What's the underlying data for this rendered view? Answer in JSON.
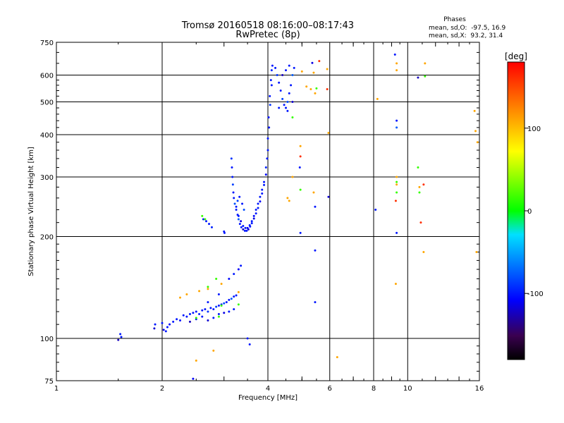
{
  "chart_data": {
    "type": "scatter",
    "title": "Tromsø 20160518 08:16:00–08:17:43",
    "subtitle": "RwPretec (8p)",
    "xlabel": "Frequency [MHz]",
    "ylabel": "Stationary phase Virtual Height [km]",
    "x_scale": "log",
    "y_scale": "log",
    "xlim": [
      1,
      16
    ],
    "ylim": [
      75,
      750
    ],
    "x_ticks": [
      1,
      2,
      4,
      6,
      8,
      10,
      16
    ],
    "y_ticks": [
      75,
      100,
      200,
      300,
      400,
      500,
      600,
      750
    ],
    "grid": true,
    "phases_box": {
      "heading": "Phases",
      "line_o": "mean, sd,O:  -97.5, 16.9",
      "line_x": "mean, sd,X:  93.2, 31.4"
    },
    "colorbar": {
      "label": "[deg]",
      "range": [
        -180,
        180
      ],
      "ticks": [
        100,
        0,
        -100
      ]
    },
    "series": [
      {
        "points": [
          [
            1.5,
            99
          ],
          [
            1.52,
            103
          ],
          [
            1.53,
            101
          ],
          [
            1.9,
            107
          ],
          [
            1.91,
            110
          ],
          [
            2.0,
            111
          ],
          [
            2.02,
            106
          ],
          [
            2.05,
            105
          ],
          [
            2.07,
            108
          ],
          [
            2.1,
            110
          ],
          [
            2.15,
            112
          ],
          [
            2.2,
            114
          ],
          [
            2.25,
            113
          ],
          [
            2.3,
            117
          ],
          [
            2.35,
            116
          ],
          [
            2.4,
            118
          ],
          [
            2.45,
            119
          ],
          [
            2.5,
            120
          ],
          [
            2.55,
            118
          ],
          [
            2.6,
            121
          ],
          [
            2.65,
            122
          ],
          [
            2.7,
            120
          ],
          [
            2.75,
            123
          ],
          [
            2.8,
            122
          ],
          [
            2.85,
            124
          ],
          [
            2.9,
            125
          ],
          [
            2.95,
            126
          ],
          [
            3.0,
            127
          ],
          [
            3.05,
            128
          ],
          [
            3.1,
            130
          ],
          [
            3.15,
            131
          ],
          [
            3.2,
            133
          ],
          [
            3.25,
            134
          ],
          [
            2.4,
            112
          ],
          [
            2.5,
            114
          ],
          [
            2.6,
            116
          ],
          [
            2.7,
            113
          ],
          [
            2.8,
            115
          ],
          [
            2.9,
            118
          ],
          [
            3.0,
            119
          ],
          [
            3.1,
            120
          ],
          [
            3.2,
            122
          ],
          [
            3.3,
            160
          ],
          [
            3.35,
            164
          ],
          [
            3.2,
            155
          ],
          [
            3.1,
            150
          ],
          [
            2.7,
            128
          ],
          [
            2.9,
            135
          ],
          [
            2.62,
            225
          ],
          [
            2.67,
            222
          ],
          [
            2.72,
            218
          ],
          [
            2.77,
            213
          ],
          [
            3.0,
            207
          ],
          [
            3.01,
            205
          ],
          [
            3.15,
            340
          ],
          [
            3.16,
            320
          ],
          [
            3.17,
            300
          ],
          [
            3.18,
            285
          ],
          [
            3.19,
            270
          ],
          [
            3.2,
            260
          ],
          [
            3.22,
            250
          ],
          [
            3.25,
            240
          ],
          [
            3.28,
            232
          ],
          [
            3.3,
            225
          ],
          [
            3.33,
            218
          ],
          [
            3.36,
            213
          ],
          [
            3.4,
            210
          ],
          [
            3.44,
            208
          ],
          [
            3.48,
            208
          ],
          [
            3.52,
            210
          ],
          [
            3.56,
            214
          ],
          [
            3.6,
            219
          ],
          [
            3.65,
            226
          ],
          [
            3.7,
            234
          ],
          [
            3.75,
            243
          ],
          [
            3.8,
            254
          ],
          [
            3.85,
            268
          ],
          [
            3.9,
            284
          ],
          [
            3.95,
            305
          ],
          [
            3.98,
            340
          ],
          [
            4.0,
            390
          ],
          [
            4.02,
            450
          ],
          [
            4.05,
            520
          ],
          [
            4.08,
            580
          ],
          [
            4.1,
            620
          ],
          [
            4.12,
            640
          ],
          [
            4.2,
            630
          ],
          [
            4.25,
            600
          ],
          [
            4.3,
            570
          ],
          [
            4.35,
            540
          ],
          [
            4.4,
            510
          ],
          [
            4.45,
            490
          ],
          [
            4.5,
            480
          ],
          [
            4.55,
            500
          ],
          [
            4.6,
            530
          ],
          [
            4.65,
            560
          ],
          [
            4.7,
            600
          ],
          [
            4.75,
            630
          ],
          [
            4.5,
            620
          ],
          [
            4.4,
            600
          ],
          [
            4.6,
            640
          ],
          [
            4.3,
            480
          ],
          [
            4.7,
            500
          ],
          [
            4.55,
            470
          ],
          [
            3.3,
            230
          ],
          [
            3.35,
            222
          ],
          [
            3.4,
            215
          ],
          [
            3.45,
            212
          ],
          [
            3.5,
            212
          ],
          [
            3.55,
            216
          ],
          [
            3.6,
            222
          ],
          [
            3.65,
            230
          ],
          [
            3.7,
            240
          ],
          [
            3.75,
            250
          ],
          [
            3.8,
            262
          ],
          [
            3.85,
            275
          ],
          [
            3.9,
            290
          ],
          [
            3.95,
            320
          ],
          [
            4.0,
            360
          ],
          [
            4.03,
            420
          ],
          [
            4.06,
            490
          ],
          [
            4.1,
            560
          ],
          [
            3.25,
            245
          ],
          [
            3.28,
            255
          ],
          [
            3.32,
            262
          ],
          [
            3.38,
            250
          ],
          [
            3.42,
            240
          ],
          [
            8.1,
            240
          ],
          [
            9.3,
            440
          ],
          [
            9.3,
            420
          ],
          [
            9.3,
            205
          ],
          [
            9.2,
            690
          ],
          [
            10.7,
            590
          ],
          [
            4.95,
            205
          ],
          [
            5.45,
            245
          ],
          [
            5.95,
            262
          ],
          [
            5.45,
            182
          ],
          [
            5.45,
            128
          ],
          [
            5.35,
            652
          ],
          [
            3.5,
            100
          ],
          [
            3.55,
            96
          ],
          [
            2.45,
            76
          ],
          [
            4.93,
            320
          ]
        ],
        "phase_deg": -100
      },
      {
        "points": [
          [
            2.25,
            132
          ],
          [
            2.35,
            135
          ],
          [
            2.55,
            138
          ],
          [
            2.7,
            140
          ],
          [
            2.95,
            145
          ],
          [
            3.3,
            137
          ],
          [
            2.5,
            86
          ],
          [
            2.8,
            92
          ],
          [
            4.7,
            300
          ],
          [
            4.95,
            370
          ],
          [
            5.15,
            555
          ],
          [
            5.3,
            545
          ],
          [
            5.4,
            610
          ],
          [
            5.9,
            625
          ],
          [
            5.45,
            530
          ],
          [
            5.0,
            615
          ],
          [
            4.6,
            255
          ],
          [
            5.95,
            405
          ],
          [
            6.3,
            88
          ],
          [
            8.2,
            510
          ],
          [
            9.3,
            650
          ],
          [
            9.3,
            620
          ],
          [
            9.25,
            145
          ],
          [
            11.2,
            650
          ],
          [
            15.6,
            410
          ],
          [
            15.5,
            470
          ],
          [
            15.7,
            180
          ],
          [
            15.8,
            380
          ],
          [
            11.1,
            180
          ],
          [
            9.3,
            300
          ],
          [
            9.3,
            285
          ],
          [
            10.8,
            280
          ],
          [
            4.55,
            260
          ],
          [
            5.4,
            270
          ]
        ],
        "phase_deg": 110
      },
      {
        "points": [
          [
            2.65,
            225
          ],
          [
            2.6,
            230
          ],
          [
            2.7,
            142
          ],
          [
            2.85,
            150
          ],
          [
            2.95,
            125
          ],
          [
            3.3,
            126
          ],
          [
            2.5,
            115
          ],
          [
            2.9,
            116
          ],
          [
            9.3,
            290
          ],
          [
            9.3,
            270
          ],
          [
            10.8,
            270
          ],
          [
            4.95,
            275
          ],
          [
            4.7,
            450
          ],
          [
            11.2,
            595
          ],
          [
            10.7,
            320
          ],
          [
            5.5,
            548
          ]
        ],
        "phase_deg": 15
      },
      {
        "points": [
          [
            5.9,
            545
          ],
          [
            5.6,
            660
          ],
          [
            9.25,
            255
          ],
          [
            10.9,
            220
          ],
          [
            11.1,
            285
          ],
          [
            4.95,
            345
          ]
        ],
        "phase_deg": 160
      }
    ]
  }
}
